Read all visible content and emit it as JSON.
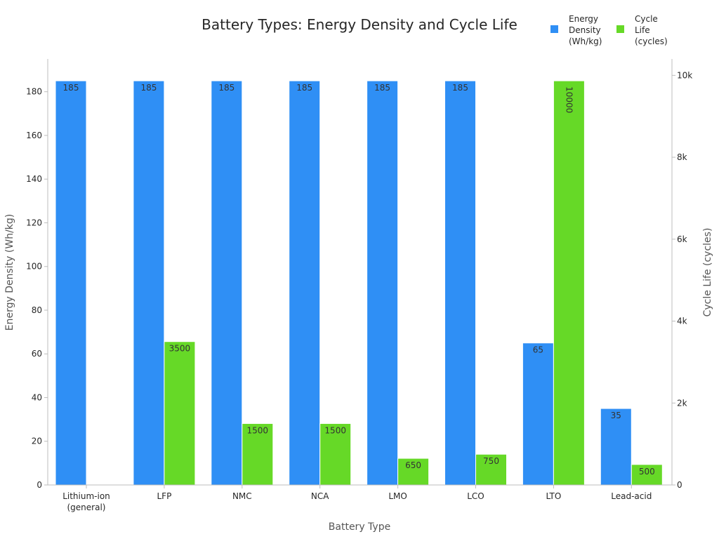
{
  "chart_data": {
    "type": "bar",
    "title": "Battery Types: Energy Density and Cycle Life",
    "xlabel": "Battery Type",
    "ylabel": "Energy Density (Wh/kg)",
    "y2label": "Cycle Life (cycles)",
    "categories": [
      "Lithium-ion (general)",
      "LFP",
      "NMC",
      "NCA",
      "LMO",
      "LCO",
      "LTO",
      "Lead-acid"
    ],
    "category_lines": [
      [
        "Lithium-ion",
        "(general)"
      ],
      [
        "LFP"
      ],
      [
        "NMC"
      ],
      [
        "NCA"
      ],
      [
        "LMO"
      ],
      [
        "LCO"
      ],
      [
        "LTO"
      ],
      [
        "Lead-acid"
      ]
    ],
    "ylim": [
      0,
      195
    ],
    "y2lim": [
      0,
      10400
    ],
    "yticks": [
      0,
      20,
      40,
      60,
      80,
      100,
      120,
      140,
      160,
      180
    ],
    "y2ticks": [
      0,
      2000,
      4000,
      6000,
      8000,
      10000
    ],
    "y2tick_labels": [
      "0",
      "2k",
      "4k",
      "6k",
      "8k",
      "10k"
    ],
    "grid": false,
    "legend_position": "top-right",
    "series": [
      {
        "name": "Energy Density (Wh/kg)",
        "name_lines": [
          "Energy",
          "Density",
          "(Wh/kg)"
        ],
        "axis": "left",
        "color": "#2f8ff5",
        "values": [
          185,
          185,
          185,
          185,
          185,
          185,
          65,
          35
        ],
        "labels": [
          "185",
          "185",
          "185",
          "185",
          "185",
          "185",
          "65",
          "35"
        ]
      },
      {
        "name": "Cycle Life (cycles)",
        "name_lines": [
          "Cycle",
          "Life",
          "(cycles)"
        ],
        "axis": "right",
        "color": "#66d927",
        "values": [
          null,
          3500,
          1500,
          1500,
          650,
          750,
          10000,
          500
        ],
        "labels": [
          "",
          "3500",
          "1500",
          "1500",
          "650",
          "750",
          "10000",
          "500"
        ],
        "display_values": [
          null,
          3500,
          1500,
          1500,
          650,
          750,
          10000,
          500
        ],
        "clip_to_left_axis_top": true
      }
    ]
  }
}
